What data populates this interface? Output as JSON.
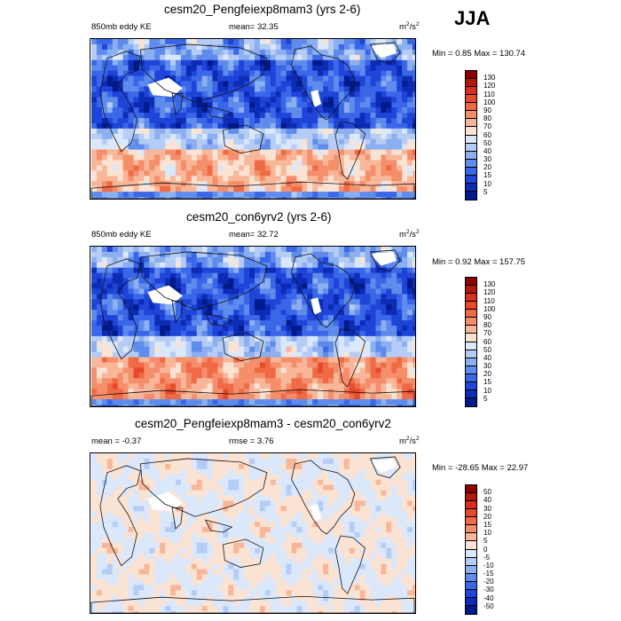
{
  "season": "JJA",
  "panels": [
    {
      "title": "cesm20_Pengfeiexp8mam3 (yrs 2-6)",
      "left_label": "850mb eddy KE",
      "center_label": "mean=  32.35",
      "unit_base": "m",
      "unit_exp1": "2",
      "unit_mid": "/s",
      "unit_exp2": "2",
      "minmax": "Min =   0.85 Max = 130.74",
      "levels": [
        "130",
        "120",
        "110",
        "100",
        "90",
        "80",
        "70",
        "60",
        "50",
        "40",
        "30",
        "20",
        "15",
        "10",
        "5"
      ],
      "colors": [
        "#8b0000",
        "#b01a0a",
        "#d8301c",
        "#e8492c",
        "#f06a45",
        "#f58e6a",
        "#f9b79a",
        "#fbe3d4",
        "#dbe7fa",
        "#b5cdf6",
        "#8caff0",
        "#5f8cec",
        "#3a67e8",
        "#1f44d8",
        "#0c2cb5",
        "#001a8c"
      ],
      "mean_color": "#1a3fd8"
    },
    {
      "title": "cesm20_con6yrv2 (yrs 2-6)",
      "left_label": "850mb eddy KE",
      "center_label": "mean=  32.72",
      "unit_base": "m",
      "unit_exp1": "2",
      "unit_mid": "/s",
      "unit_exp2": "2",
      "minmax": "Min =   0.92 Max = 157.75",
      "levels": [
        "130",
        "120",
        "110",
        "100",
        "90",
        "80",
        "70",
        "60",
        "50",
        "40",
        "30",
        "20",
        "15",
        "10",
        "5"
      ],
      "colors": [
        "#8b0000",
        "#b01a0a",
        "#d8301c",
        "#e8492c",
        "#f06a45",
        "#f58e6a",
        "#f9b79a",
        "#fbe3d4",
        "#dbe7fa",
        "#b5cdf6",
        "#8caff0",
        "#5f8cec",
        "#3a67e8",
        "#1f44d8",
        "#0c2cb5",
        "#001a8c"
      ],
      "mean_color": "#1a3fd8"
    },
    {
      "title": "cesm20_Pengfeiexp8mam3 - cesm20_con6yrv2",
      "left_label": "mean =  -0.37",
      "center_label": "rmse =   3.76",
      "unit_base": "m",
      "unit_exp1": "2",
      "unit_mid": "/s",
      "unit_exp2": "2",
      "minmax": "Min = -28.65 Max =  22.97",
      "levels": [
        "50",
        "40",
        "30",
        "20",
        "15",
        "10",
        "5",
        "0",
        "-5",
        "-10",
        "-15",
        "-20",
        "-30",
        "-40",
        "-50"
      ],
      "colors": [
        "#8b0000",
        "#b01a0a",
        "#d8301c",
        "#e8492c",
        "#f06a45",
        "#f58e6a",
        "#f9b79a",
        "#fbe3d4",
        "#dbe7fa",
        "#b5cdf6",
        "#8caff0",
        "#5f8cec",
        "#3a67e8",
        "#1f44d8",
        "#0c2cb5",
        "#001a8c"
      ],
      "mean_color": "#eaf0fb"
    }
  ]
}
